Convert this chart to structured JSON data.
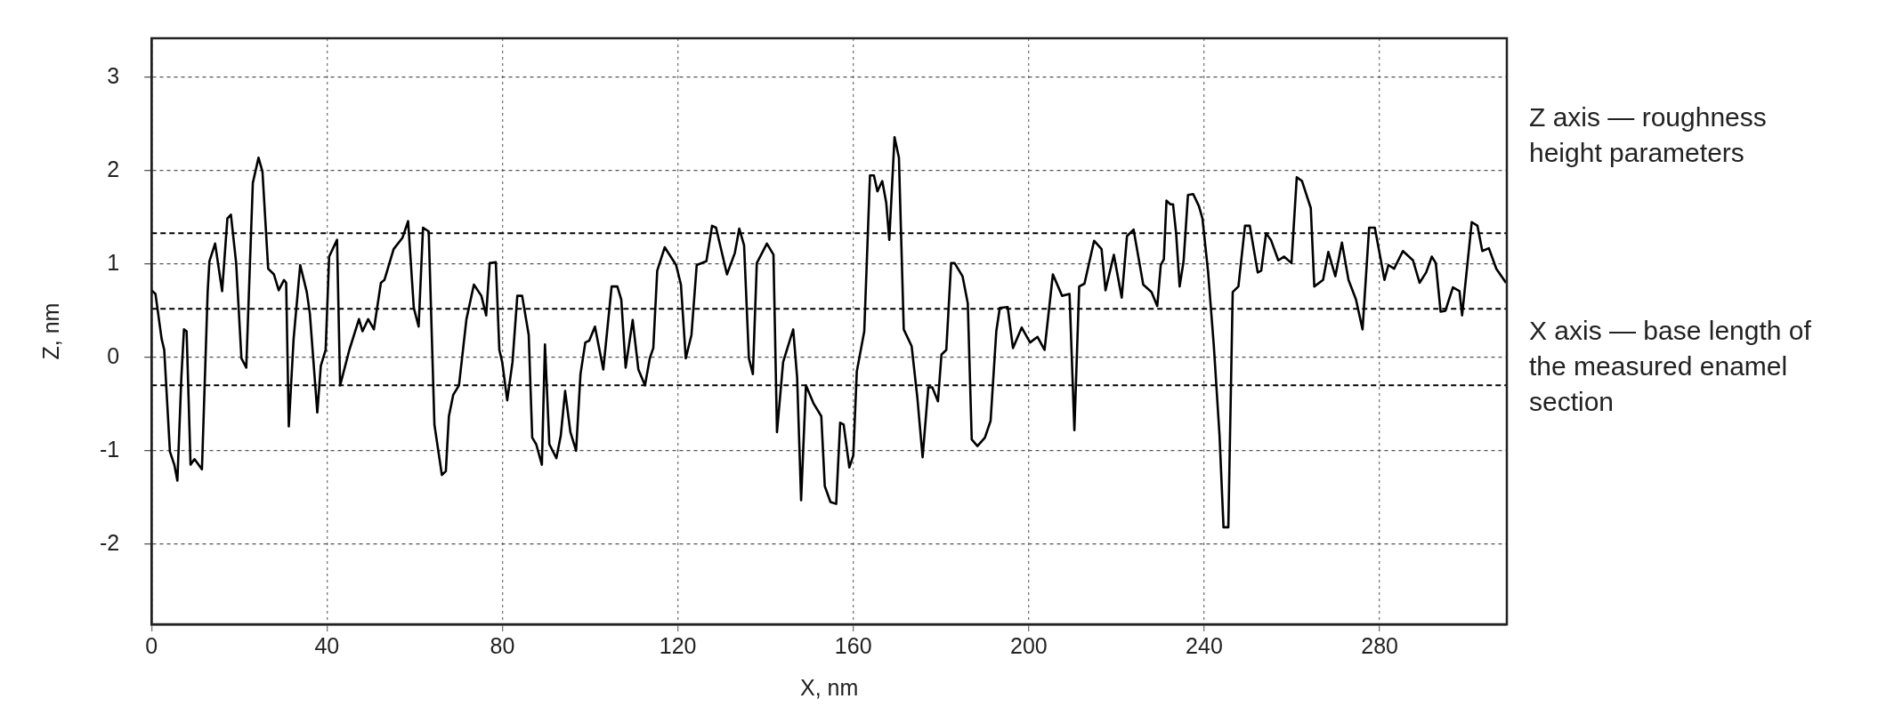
{
  "chart_data": {
    "type": "line",
    "xlabel": "X, nm",
    "ylabel": "Z, nm",
    "annotations": [
      "Z axis — roughness height parameters",
      "X axis — base length of the measured enamel section"
    ],
    "xlim": [
      0,
      309
    ],
    "xticks": [
      0,
      40,
      80,
      120,
      160,
      200,
      240,
      280
    ],
    "ylim": [
      -2.86,
      3.42
    ],
    "yticks": [
      -2,
      -1,
      0,
      1,
      2,
      3
    ],
    "grid": true,
    "legend": false,
    "ref_lines": [
      {
        "axis": "y",
        "value": 1.33,
        "color": "#000000",
        "line_style": "dashed"
      },
      {
        "axis": "y",
        "value": 0.52,
        "color": "#000000",
        "line_style": "dashed"
      },
      {
        "axis": "y",
        "value": -0.3,
        "color": "#000000",
        "line_style": "dashed"
      }
    ],
    "series": [
      {
        "color": "#000000",
        "x": [
          0,
          0.9,
          2.3,
          2.9,
          4.2,
          5.2,
          5.9,
          6.8,
          7.4,
          8.0,
          8.9,
          9.8,
          11.5,
          12.8,
          13.2,
          14.5,
          16.1,
          17.3,
          18.1,
          19.3,
          20.5,
          21.6,
          23.1,
          24.4,
          25.3,
          26.6,
          27.9,
          29,
          30.2,
          30.7,
          31.3,
          32.4,
          33.9,
          35.4,
          36.1,
          37.8,
          38.6,
          39.7,
          40.5,
          42.3,
          43,
          45.1,
          47.3,
          48.1,
          49.4,
          50.7,
          52.3,
          53.1,
          55.2,
          57.2,
          58.5,
          59.8,
          60.9,
          61.9,
          63.2,
          64.5,
          66.2,
          67.1,
          67.8,
          68.8,
          70.1,
          71.8,
          73.5,
          75.2,
          76.3,
          77.1,
          78.5,
          79.3,
          79.95,
          81.1,
          82.3,
          83.4,
          84.5,
          86,
          86.8,
          87.7,
          89,
          89.7,
          90.7,
          92.3,
          93.3,
          94.3,
          95.5,
          96.8,
          97.8,
          98.9,
          99.8,
          101.1,
          103,
          104.9,
          106.2,
          107.1,
          108.1,
          109.7,
          111,
          112.5,
          113.6,
          114.4,
          115.3,
          117,
          119.6,
          120.7,
          121.8,
          123.1,
          124.3,
          126.5,
          127.8,
          128.7,
          131.2,
          133,
          134,
          135.1,
          136.2,
          137.1,
          138,
          140.3,
          141.8,
          142.6,
          144,
          146.3,
          147.2,
          148.1,
          149.2,
          150.9,
          152.7,
          153.5,
          154.8,
          156.1,
          157,
          157.8,
          159.1,
          160,
          160.8,
          162.5,
          163.8,
          164.7,
          165.5,
          166.6,
          167.5,
          168.2,
          169.4,
          170.4,
          171.5,
          173.3,
          174.6,
          175.8,
          177.1,
          178,
          179.3,
          180.1,
          181.2,
          182.3,
          183.1,
          184.9,
          186.1,
          187,
          188.3,
          190,
          191.3,
          192.6,
          193.4,
          195.2,
          196.4,
          198.4,
          200.3,
          202,
          203.6,
          205.5,
          207.6,
          209.3,
          210.4,
          211.5,
          212.7,
          214.9,
          216.6,
          217.5,
          219.4,
          221.2,
          222.4,
          223.9,
          226.1,
          228,
          229.3,
          230.1,
          230.8,
          231.4,
          232.3,
          232.9,
          233.6,
          234.4,
          235.3,
          236.3,
          237.5,
          238.8,
          239.6,
          240.9,
          242.2,
          243.5,
          244.4,
          245.5,
          246.5,
          247.8,
          249.3,
          250.4,
          252.2,
          253,
          254.1,
          255.2,
          256.9,
          258.2,
          259.9,
          261.1,
          262.3,
          264.3,
          265.1,
          267.1,
          268.3,
          269.9,
          271.4,
          272.9,
          274.6,
          276.1,
          277.6,
          278.9,
          281.1,
          282,
          283.3,
          285.3,
          287.6,
          289.1,
          290.6,
          291.9,
          292.8,
          293.9,
          295,
          296.7,
          298.2,
          298.8,
          301,
          302.3,
          303.4,
          304.9,
          306.6,
          308.8
        ],
        "values": [
          0.72,
          0.68,
          0.2,
          0.08,
          -1.01,
          -1.15,
          -1.32,
          -0.22,
          0.3,
          0.28,
          -1.15,
          -1.09,
          -1.2,
          0.7,
          1.03,
          1.22,
          0.71,
          1.49,
          1.53,
          1.01,
          -0.01,
          -0.11,
          1.87,
          2.14,
          1.99,
          0.95,
          0.89,
          0.72,
          0.83,
          0.8,
          -0.74,
          0.2,
          0.99,
          0.7,
          0.47,
          -0.59,
          -0.09,
          0.08,
          1.08,
          1.26,
          -0.3,
          0.08,
          0.41,
          0.28,
          0.41,
          0.3,
          0.8,
          0.83,
          1.16,
          1.28,
          1.46,
          0.53,
          0.33,
          1.39,
          1.35,
          -0.72,
          -1.26,
          -1.22,
          -0.63,
          -0.4,
          -0.3,
          0.41,
          0.78,
          0.66,
          0.45,
          1.01,
          1.02,
          0.08,
          -0.05,
          -0.46,
          -0.05,
          0.66,
          0.66,
          0.24,
          -0.86,
          -0.93,
          -1.15,
          0.14,
          -0.93,
          -1.08,
          -0.84,
          -0.36,
          -0.8,
          -1.0,
          -0.18,
          0.16,
          0.18,
          0.33,
          -0.13,
          0.76,
          0.76,
          0.62,
          -0.11,
          0.4,
          -0.13,
          -0.3,
          -0.01,
          0.1,
          0.93,
          1.18,
          0.99,
          0.78,
          -0.01,
          0.24,
          0.99,
          1.03,
          1.41,
          1.39,
          0.89,
          1.12,
          1.38,
          1.2,
          -0.01,
          -0.18,
          1.01,
          1.22,
          1.1,
          -0.8,
          -0.05,
          0.3,
          -0.22,
          -1.53,
          -0.3,
          -0.49,
          -0.63,
          -1.38,
          -1.55,
          -1.57,
          -0.7,
          -0.72,
          -1.18,
          -1.05,
          -0.15,
          0.28,
          1.95,
          1.95,
          1.78,
          1.89,
          1.66,
          1.26,
          2.36,
          2.14,
          0.3,
          0.12,
          -0.43,
          -1.07,
          -0.32,
          -0.32,
          -0.47,
          0.03,
          0.08,
          1.01,
          1.01,
          0.87,
          0.58,
          -0.88,
          -0.95,
          -0.86,
          -0.68,
          0.28,
          0.53,
          0.54,
          0.1,
          0.32,
          0.16,
          0.22,
          0.08,
          0.89,
          0.66,
          0.68,
          -0.78,
          0.76,
          0.79,
          1.25,
          1.16,
          0.72,
          1.1,
          0.64,
          1.3,
          1.37,
          0.78,
          0.7,
          0.55,
          0.99,
          1.05,
          1.68,
          1.64,
          1.64,
          1.33,
          0.76,
          1.03,
          1.74,
          1.75,
          1.62,
          1.49,
          0.91,
          0.12,
          -0.84,
          -1.82,
          -1.82,
          0.7,
          0.76,
          1.41,
          1.41,
          0.91,
          0.93,
          1.33,
          1.26,
          1.04,
          1.08,
          1.01,
          1.93,
          1.89,
          1.6,
          0.76,
          0.83,
          1.13,
          0.87,
          1.23,
          0.83,
          0.62,
          0.3,
          1.39,
          1.39,
          0.83,
          0.99,
          0.95,
          1.14,
          1.04,
          0.8,
          0.91,
          1.08,
          1.01,
          0.49,
          0.5,
          0.75,
          0.71,
          0.45,
          1.45,
          1.41,
          1.14,
          1.17,
          0.95,
          0.8
        ]
      }
    ]
  }
}
